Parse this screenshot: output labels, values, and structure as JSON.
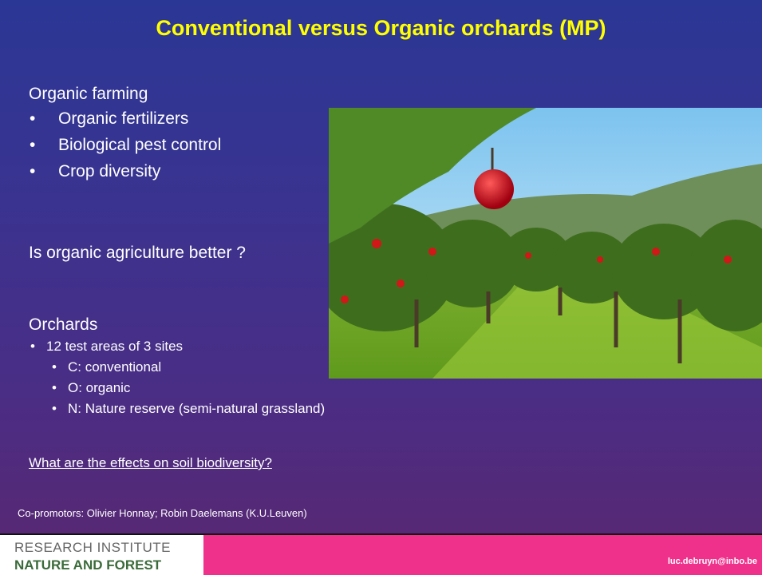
{
  "title": "Conventional versus Organic orchards (MP)",
  "organic": {
    "heading": "Organic farming",
    "bullets": [
      "Organic fertilizers",
      "Biological pest control",
      "Crop diversity"
    ]
  },
  "question": "Is organic agriculture better ?",
  "orchards": {
    "heading": "Orchards",
    "bullet": "12 test areas of 3 sites",
    "sub_bullets": [
      "C: conventional",
      "O: organic",
      "N: Nature reserve (semi-natural grassland)"
    ]
  },
  "research_question": "What are the effects on soil biodiversity?",
  "copromotors": "Co-promotors: Olivier Honnay; Robin Daelemans (K.U.Leuven)",
  "footer": {
    "logo_line1": "RESEARCH INSTITUTE",
    "logo_line2": "NATURE AND FOREST",
    "email": "luc.debruyn@inbo.be"
  }
}
